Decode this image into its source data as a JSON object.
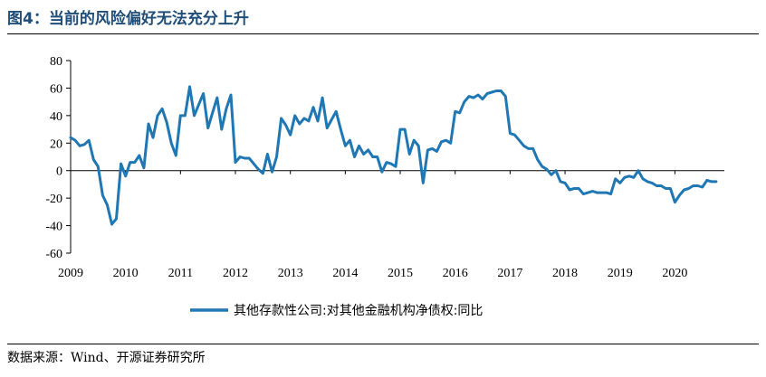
{
  "header": {
    "title": "图4：当前的风险偏好无法充分上升"
  },
  "footer": {
    "source": "数据来源：Wind、开源证券研究所"
  },
  "colors": {
    "series": "#1f77b4"
  },
  "chart_data": {
    "type": "line",
    "title": "",
    "xlabel": "",
    "ylabel": "",
    "ylim": [
      -60,
      80
    ],
    "y_ticks": [
      80,
      60,
      40,
      20,
      0,
      -20,
      -40,
      -60
    ],
    "xlim": [
      2009,
      2020.9
    ],
    "x_ticks": [
      "2009",
      "2010",
      "2011",
      "2012",
      "2013",
      "2014",
      "2015",
      "2016",
      "2017",
      "2018",
      "2019",
      "2020"
    ],
    "grid": false,
    "legend": "bottom-center",
    "series": [
      {
        "name": "其他存款性公司:对其他金融机构净债权:同比",
        "x": [
          2009.0,
          2009.083,
          2009.167,
          2009.25,
          2009.333,
          2009.417,
          2009.5,
          2009.583,
          2009.667,
          2009.75,
          2009.833,
          2009.917,
          2010.0,
          2010.083,
          2010.167,
          2010.25,
          2010.333,
          2010.417,
          2010.5,
          2010.583,
          2010.667,
          2010.75,
          2010.833,
          2010.917,
          2011.0,
          2011.083,
          2011.167,
          2011.25,
          2011.333,
          2011.417,
          2011.5,
          2011.583,
          2011.667,
          2011.75,
          2011.833,
          2011.917,
          2012.0,
          2012.083,
          2012.167,
          2012.25,
          2012.333,
          2012.417,
          2012.5,
          2012.583,
          2012.667,
          2012.75,
          2012.833,
          2012.917,
          2013.0,
          2013.083,
          2013.167,
          2013.25,
          2013.333,
          2013.417,
          2013.5,
          2013.583,
          2013.667,
          2013.75,
          2013.833,
          2013.917,
          2014.0,
          2014.083,
          2014.167,
          2014.25,
          2014.333,
          2014.417,
          2014.5,
          2014.583,
          2014.667,
          2014.75,
          2014.833,
          2014.917,
          2015.0,
          2015.083,
          2015.167,
          2015.25,
          2015.333,
          2015.417,
          2015.5,
          2015.583,
          2015.667,
          2015.75,
          2015.833,
          2015.917,
          2016.0,
          2016.083,
          2016.167,
          2016.25,
          2016.333,
          2016.417,
          2016.5,
          2016.583,
          2016.667,
          2016.75,
          2016.833,
          2016.917,
          2017.0,
          2017.083,
          2017.167,
          2017.25,
          2017.333,
          2017.417,
          2017.5,
          2017.583,
          2017.667,
          2017.75,
          2017.833,
          2017.917,
          2018.0,
          2018.083,
          2018.167,
          2018.25,
          2018.333,
          2018.417,
          2018.5,
          2018.583,
          2018.667,
          2018.75,
          2018.833,
          2018.917,
          2019.0,
          2019.083,
          2019.167,
          2019.25,
          2019.333,
          2019.417,
          2019.5,
          2019.583,
          2019.667,
          2019.75,
          2019.833,
          2019.917,
          2020.0,
          2020.083,
          2020.167,
          2020.25,
          2020.333,
          2020.417,
          2020.5,
          2020.583,
          2020.667,
          2020.75
        ],
        "y": [
          24,
          22,
          18,
          19,
          22,
          8,
          3,
          -18,
          -25,
          -39,
          -35,
          5,
          -4,
          6,
          6,
          11,
          2,
          34,
          24,
          40,
          45,
          35,
          20,
          11,
          40,
          40,
          61,
          40,
          48,
          56,
          31,
          42,
          53,
          30,
          45,
          55,
          6,
          10,
          9,
          9,
          5,
          1,
          -2,
          12,
          -1,
          10,
          38,
          33,
          26,
          40,
          34,
          38,
          36,
          46,
          36,
          53,
          31,
          37,
          43,
          30,
          18,
          22,
          10,
          18,
          12,
          15,
          10,
          10,
          -1,
          6,
          5,
          3,
          30,
          30,
          12,
          22,
          18,
          -9,
          15,
          16,
          14,
          21,
          22,
          20,
          43,
          42,
          50,
          54,
          53,
          55,
          52,
          56,
          57,
          58,
          58,
          54,
          27,
          26,
          22,
          18,
          16,
          16,
          8,
          3,
          1,
          -3,
          0,
          -8,
          -9,
          -14,
          -13,
          -13,
          -17,
          -16,
          -15,
          -16,
          -16,
          -16,
          -17,
          -6,
          -9,
          -5,
          -4,
          -5,
          0,
          -6,
          -8,
          -9,
          -11,
          -11,
          -13,
          -13,
          -23,
          -18,
          -14,
          -13,
          -11,
          -11,
          -12,
          -7,
          -8,
          -8
        ]
      }
    ]
  }
}
